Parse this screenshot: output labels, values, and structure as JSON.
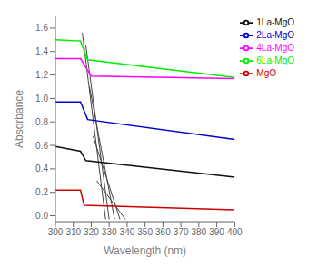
{
  "chart_data": {
    "type": "line",
    "xlabel": "Wavelength (nm)",
    "ylabel": "Absorbance",
    "xlim": [
      300,
      400
    ],
    "ylim": [
      -0.05,
      1.7
    ],
    "xticks": [
      300,
      310,
      320,
      330,
      340,
      350,
      360,
      370,
      380,
      390,
      400
    ],
    "yticks": [
      {
        "value": 0,
        "label": "0.0"
      },
      {
        "value": 0.2,
        "label": "0.2"
      },
      {
        "value": 0.4,
        "label": "0.4"
      },
      {
        "value": 0.6,
        "label": "0.6"
      },
      {
        "value": 0.8,
        "label": "0.8"
      },
      {
        "value": 1,
        "label": "1.0"
      },
      {
        "value": 1.2,
        "label": "1.2"
      },
      {
        "value": 1.4,
        "label": "1.4"
      },
      {
        "value": 1.6,
        "label": "1.6"
      }
    ],
    "grid": false,
    "legend": "upper right",
    "series": [
      {
        "name": "6La-MgO",
        "color": "#00ee00",
        "x": [
          300,
          314,
          318,
          400
        ],
        "values": [
          1.5,
          1.49,
          1.33,
          1.18
        ]
      },
      {
        "name": "4La-MgO",
        "color": "#ff00ff",
        "x": [
          300,
          314,
          320,
          400
        ],
        "values": [
          1.34,
          1.34,
          1.19,
          1.17
        ]
      },
      {
        "name": "2La-MgO",
        "color": "#0000cc",
        "x": [
          300,
          314,
          318,
          400
        ],
        "values": [
          0.97,
          0.97,
          0.82,
          0.65
        ]
      },
      {
        "name": "1La-MgO",
        "color": "#111111",
        "x": [
          300,
          314,
          317,
          400
        ],
        "values": [
          0.59,
          0.55,
          0.47,
          0.33
        ]
      },
      {
        "name": "MgO",
        "color": "#cc0000",
        "x": [
          300,
          314,
          316,
          400
        ],
        "values": [
          0.22,
          0.22,
          0.09,
          0.05
        ]
      }
    ],
    "drop_lines": {
      "color": "#444444",
      "segments": [
        {
          "x": [
            315,
            328
          ],
          "values": [
            1.56,
            -0.03
          ]
        },
        {
          "x": [
            317,
            330
          ],
          "values": [
            1.45,
            -0.03
          ]
        },
        {
          "x": [
            319,
            333
          ],
          "values": [
            1.1,
            -0.03
          ]
        },
        {
          "x": [
            321,
            336
          ],
          "values": [
            0.68,
            -0.03
          ]
        },
        {
          "x": [
            323,
            339
          ],
          "values": [
            0.3,
            -0.03
          ]
        }
      ]
    }
  }
}
